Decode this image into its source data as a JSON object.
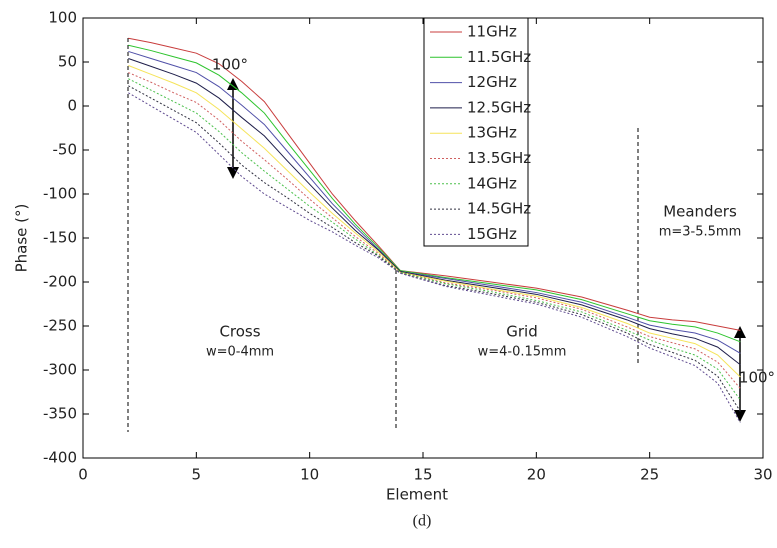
{
  "chart_data": {
    "type": "line",
    "xlabel": "Element",
    "ylabel": "Phase (°)",
    "caption": "(d)",
    "xlim": [
      0,
      30
    ],
    "xticks": [
      0,
      5,
      10,
      15,
      20,
      25,
      30
    ],
    "ylim": [
      -400,
      100
    ],
    "yticks": [
      -400,
      -350,
      -300,
      -250,
      -200,
      -150,
      -100,
      -50,
      0,
      50,
      100
    ],
    "legend": "top-center",
    "x": [
      2,
      3,
      4,
      5,
      6,
      7,
      8,
      9,
      10,
      11,
      12,
      13,
      14,
      16,
      18,
      20,
      22,
      24,
      25,
      26,
      27,
      28,
      29
    ],
    "series": [
      {
        "name": "11GHz",
        "color": "#c83c3c",
        "style": "solid",
        "values": [
          77,
          72,
          66,
          60,
          48,
          28,
          5,
          -30,
          -65,
          -100,
          -130,
          -158,
          -187,
          -193,
          -200,
          -207,
          -217,
          -232,
          -240,
          -243,
          -245,
          -250,
          -255
        ]
      },
      {
        "name": "11.5GHz",
        "color": "#2ec42e",
        "style": "solid",
        "values": [
          69,
          63,
          56,
          49,
          35,
          15,
          -8,
          -41,
          -73,
          -105,
          -134,
          -160,
          -187,
          -195,
          -202,
          -209,
          -220,
          -236,
          -244,
          -248,
          -251,
          -258,
          -268
        ]
      },
      {
        "name": "12GHz",
        "color": "#5050a8",
        "style": "solid",
        "values": [
          62,
          54,
          46,
          38,
          22,
          1,
          -21,
          -51,
          -81,
          -111,
          -137,
          -162,
          -188,
          -196,
          -204,
          -212,
          -223,
          -240,
          -249,
          -254,
          -258,
          -266,
          -281
        ]
      },
      {
        "name": "12.5GHz",
        "color": "#1e1e4a",
        "style": "solid",
        "values": [
          54,
          45,
          36,
          26,
          9,
          -13,
          -34,
          -62,
          -89,
          -116,
          -141,
          -163,
          -188,
          -198,
          -206,
          -214,
          -226,
          -243,
          -253,
          -259,
          -264,
          -274,
          -294
        ]
      },
      {
        "name": "13GHz",
        "color": "#f5e45a",
        "style": "solid",
        "values": [
          46,
          36,
          26,
          15,
          -4,
          -26,
          -48,
          -73,
          -98,
          -122,
          -144,
          -165,
          -189,
          -199,
          -208,
          -216,
          -229,
          -247,
          -258,
          -264,
          -270,
          -283,
          -308
        ]
      },
      {
        "name": "13.5GHz",
        "color": "#d06060",
        "style": "dashed",
        "values": [
          38,
          27,
          15,
          4,
          -16,
          -40,
          -61,
          -83,
          -106,
          -127,
          -148,
          -167,
          -189,
          -201,
          -209,
          -218,
          -231,
          -251,
          -262,
          -269,
          -276,
          -291,
          -321
        ]
      },
      {
        "name": "14GHz",
        "color": "#4cc04c",
        "style": "dashed",
        "values": [
          31,
          18,
          5,
          -8,
          -29,
          -53,
          -74,
          -94,
          -114,
          -132,
          -151,
          -169,
          -189,
          -202,
          -211,
          -221,
          -234,
          -255,
          -266,
          -275,
          -283,
          -299,
          -334
        ]
      },
      {
        "name": "14.5GHz",
        "color": "#303040",
        "style": "dashed",
        "values": [
          23,
          9,
          -5,
          -19,
          -42,
          -67,
          -87,
          -104,
          -122,
          -138,
          -155,
          -170,
          -190,
          -204,
          -213,
          -223,
          -237,
          -258,
          -271,
          -280,
          -289,
          -307,
          -347
        ]
      },
      {
        "name": "15GHz",
        "color": "#604c90",
        "style": "dashed",
        "values": [
          15,
          0,
          -15,
          -30,
          -55,
          -80,
          -100,
          -115,
          -130,
          -143,
          -158,
          -172,
          -190,
          -205,
          -215,
          -225,
          -240,
          -262,
          -275,
          -285,
          -295,
          -315,
          -360
        ]
      }
    ],
    "annotations": [
      "100°",
      "100°",
      "Cross",
      "w=0-4mm",
      "Grid",
      "w=4-0.15mm",
      "Meanders",
      "m=3-5.5mm"
    ]
  }
}
